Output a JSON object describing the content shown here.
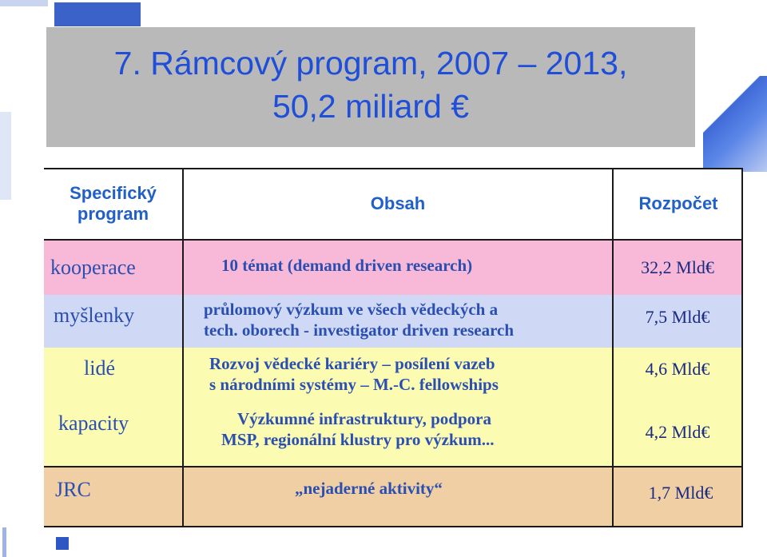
{
  "title": {
    "line1": "7. Rámcový program, 2007 – 2013,",
    "line2": "50,2  miliard €"
  },
  "table": {
    "headers": {
      "program": "Specifický program",
      "content": "Obsah",
      "budget": "Rozpočet"
    },
    "rows": [
      {
        "program": "kooperace",
        "content_1": "10 témat (demand driven research)",
        "content_2": "",
        "budget": "32,2 Mld€",
        "color": "#f7b9d7"
      },
      {
        "program": "myšlenky",
        "content_1": "průlomový výzkum ve všech  vědeckých a",
        "content_2": "tech. oborech  - investigator driven research",
        "budget": "7,5 Mld€",
        "color": "#cfd8f4"
      },
      {
        "program": "lidé",
        "content_1": "Rozvoj vědecké kariéry – posílení vazeb",
        "content_2": "s národními systémy – M.-C. fellowships",
        "budget": "4,6 Mld€",
        "color": "#fbfbb2"
      },
      {
        "program": "kapacity",
        "content_1": "Výzkumné infrastruktury, podpora",
        "content_2": "MSP, regionální klustry pro výzkum...",
        "budget": "4,2 Mld€",
        "color": "#fbfbb2"
      },
      {
        "program": "JRC",
        "content_1": "„nejaderné aktivity“",
        "content_2": "",
        "budget": "1,7 Mld€",
        "color": "#f1cfa5"
      }
    ]
  }
}
